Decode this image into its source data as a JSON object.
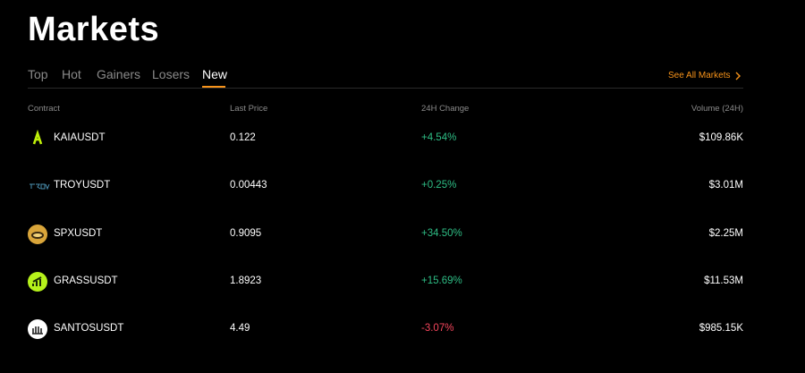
{
  "header": {
    "title": "Markets"
  },
  "tabs": [
    "Top",
    "Hot",
    "Gainers",
    "Losers",
    "New"
  ],
  "see_all": "See All Markets",
  "table": {
    "columns": [
      "Contract",
      "Last Price",
      "24H Change",
      "Volume (24H)"
    ],
    "rows": [
      [
        "KAIAUSDT",
        "0.122",
        "+4.54%",
        "$109.86K"
      ],
      [
        "TROYUSDT",
        "0.00443",
        "+0.25%",
        "$3.01M"
      ],
      [
        "SPXUSDT",
        "0.9095",
        "+34.50%",
        "$2.25M"
      ],
      [
        "GRASSUSDT",
        "1.8923",
        "+15.69%",
        "$11.53M"
      ],
      [
        "SANTOSUSDT",
        "4.49",
        "-3.07%",
        "$985.15K"
      ]
    ]
  }
}
